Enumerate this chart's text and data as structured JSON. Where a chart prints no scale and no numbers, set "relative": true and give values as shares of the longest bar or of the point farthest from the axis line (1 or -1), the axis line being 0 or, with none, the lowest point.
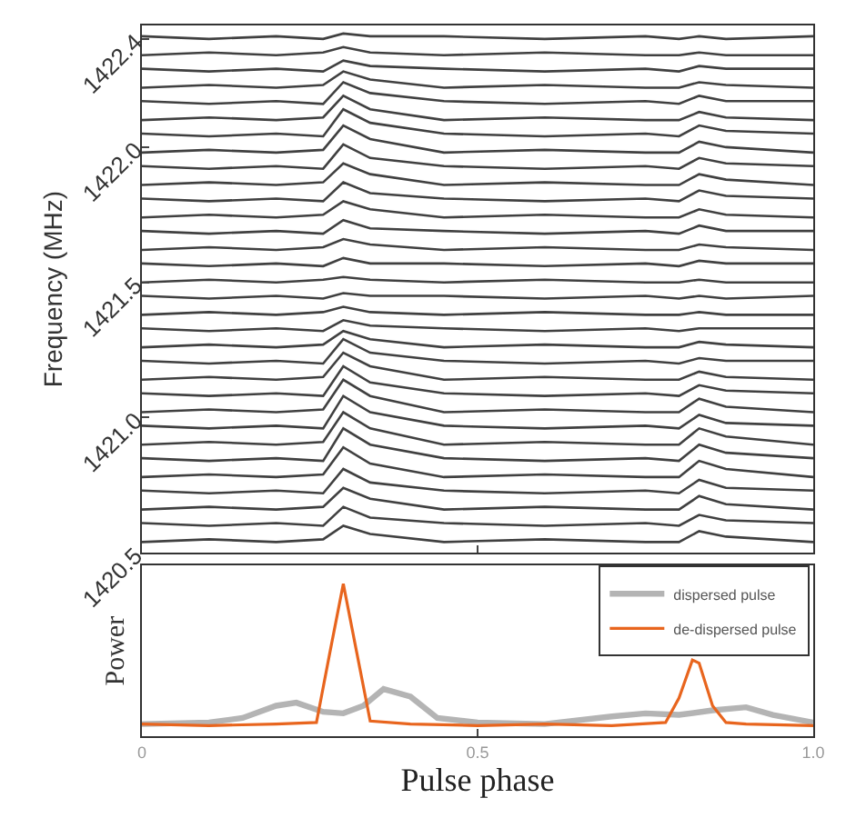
{
  "chart_data": [
    {
      "type": "line",
      "ylabel": "Frequency (MHz)",
      "x": [
        0,
        0.1,
        0.2,
        0.27,
        0.3,
        0.34,
        0.45,
        0.6,
        0.75,
        0.8,
        0.83,
        0.87,
        1.0
      ],
      "series": [
        {
          "color": "#404040",
          "values": [
            1420.54,
            1420.55,
            1420.54,
            1420.55,
            1420.6,
            1420.57,
            1420.54,
            1420.55,
            1420.54,
            1420.54,
            1420.58,
            1420.56,
            1420.54
          ]
        },
        {
          "color": "#404040",
          "values": [
            1420.61,
            1420.6,
            1420.61,
            1420.6,
            1420.67,
            1420.63,
            1420.61,
            1420.6,
            1420.61,
            1420.6,
            1420.64,
            1420.62,
            1420.61
          ]
        },
        {
          "color": "#404040",
          "values": [
            1420.66,
            1420.67,
            1420.66,
            1420.67,
            1420.74,
            1420.7,
            1420.66,
            1420.67,
            1420.66,
            1420.66,
            1420.71,
            1420.68,
            1420.66
          ]
        },
        {
          "color": "#404040",
          "values": [
            1420.73,
            1420.72,
            1420.73,
            1420.72,
            1420.81,
            1420.76,
            1420.73,
            1420.72,
            1420.73,
            1420.72,
            1420.77,
            1420.74,
            1420.73
          ]
        },
        {
          "color": "#404040",
          "values": [
            1420.78,
            1420.79,
            1420.78,
            1420.79,
            1420.89,
            1420.83,
            1420.78,
            1420.79,
            1420.78,
            1420.78,
            1420.84,
            1420.81,
            1420.78
          ]
        },
        {
          "color": "#404040",
          "values": [
            1420.85,
            1420.84,
            1420.85,
            1420.84,
            1420.96,
            1420.9,
            1420.85,
            1420.84,
            1420.85,
            1420.84,
            1420.9,
            1420.87,
            1420.85
          ]
        },
        {
          "color": "#404040",
          "values": [
            1420.9,
            1420.91,
            1420.9,
            1420.91,
            1421.02,
            1420.96,
            1420.9,
            1420.91,
            1420.9,
            1420.9,
            1420.96,
            1420.93,
            1420.9
          ]
        },
        {
          "color": "#404040",
          "values": [
            1420.97,
            1420.96,
            1420.97,
            1420.96,
            1421.08,
            1421.02,
            1420.97,
            1420.96,
            1420.97,
            1420.96,
            1421.01,
            1420.98,
            1420.97
          ]
        },
        {
          "color": "#404040",
          "values": [
            1421.02,
            1421.03,
            1421.02,
            1421.03,
            1421.14,
            1421.08,
            1421.02,
            1421.03,
            1421.02,
            1421.02,
            1421.07,
            1421.04,
            1421.02
          ]
        },
        {
          "color": "#404040",
          "values": [
            1421.09,
            1421.08,
            1421.09,
            1421.08,
            1421.19,
            1421.13,
            1421.09,
            1421.08,
            1421.09,
            1421.08,
            1421.12,
            1421.1,
            1421.09
          ]
        },
        {
          "color": "#404040",
          "values": [
            1421.14,
            1421.15,
            1421.14,
            1421.15,
            1421.24,
            1421.19,
            1421.14,
            1421.15,
            1421.14,
            1421.14,
            1421.17,
            1421.15,
            1421.14
          ]
        },
        {
          "color": "#404040",
          "values": [
            1421.21,
            1421.2,
            1421.21,
            1421.2,
            1421.29,
            1421.24,
            1421.21,
            1421.2,
            1421.21,
            1421.2,
            1421.22,
            1421.21,
            1421.21
          ]
        },
        {
          "color": "#404040",
          "values": [
            1421.26,
            1421.27,
            1421.26,
            1421.27,
            1421.32,
            1421.29,
            1421.26,
            1421.27,
            1421.26,
            1421.26,
            1421.28,
            1421.27,
            1421.26
          ]
        },
        {
          "color": "#404040",
          "values": [
            1421.33,
            1421.32,
            1421.33,
            1421.32,
            1421.36,
            1421.34,
            1421.33,
            1421.32,
            1421.33,
            1421.32,
            1421.33,
            1421.33,
            1421.33
          ]
        },
        {
          "color": "#404040",
          "values": [
            1421.38,
            1421.39,
            1421.38,
            1421.39,
            1421.41,
            1421.39,
            1421.38,
            1421.39,
            1421.38,
            1421.38,
            1421.39,
            1421.38,
            1421.38
          ]
        },
        {
          "color": "#404040",
          "values": [
            1421.45,
            1421.44,
            1421.45,
            1421.44,
            1421.46,
            1421.45,
            1421.45,
            1421.44,
            1421.45,
            1421.44,
            1421.45,
            1421.44,
            1421.45
          ]
        },
        {
          "color": "#404040",
          "values": [
            1421.5,
            1421.51,
            1421.5,
            1421.51,
            1421.52,
            1421.51,
            1421.5,
            1421.51,
            1421.5,
            1421.5,
            1421.51,
            1421.5,
            1421.5
          ]
        },
        {
          "color": "#404040",
          "values": [
            1421.57,
            1421.56,
            1421.57,
            1421.56,
            1421.59,
            1421.57,
            1421.57,
            1421.56,
            1421.57,
            1421.56,
            1421.58,
            1421.57,
            1421.57
          ]
        },
        {
          "color": "#404040",
          "values": [
            1421.62,
            1421.63,
            1421.62,
            1421.63,
            1421.66,
            1421.64,
            1421.62,
            1421.63,
            1421.62,
            1421.62,
            1421.64,
            1421.63,
            1421.62
          ]
        },
        {
          "color": "#404040",
          "values": [
            1421.69,
            1421.68,
            1421.69,
            1421.68,
            1421.73,
            1421.7,
            1421.69,
            1421.68,
            1421.69,
            1421.68,
            1421.71,
            1421.69,
            1421.69
          ]
        },
        {
          "color": "#404040",
          "values": [
            1421.74,
            1421.75,
            1421.74,
            1421.75,
            1421.8,
            1421.77,
            1421.74,
            1421.75,
            1421.74,
            1421.74,
            1421.77,
            1421.75,
            1421.74
          ]
        },
        {
          "color": "#404040",
          "values": [
            1421.81,
            1421.8,
            1421.81,
            1421.8,
            1421.87,
            1421.83,
            1421.81,
            1421.8,
            1421.81,
            1421.8,
            1421.84,
            1421.82,
            1421.81
          ]
        },
        {
          "color": "#404040",
          "values": [
            1421.86,
            1421.87,
            1421.86,
            1421.87,
            1421.94,
            1421.9,
            1421.86,
            1421.87,
            1421.86,
            1421.86,
            1421.9,
            1421.88,
            1421.86
          ]
        },
        {
          "color": "#404040",
          "values": [
            1421.93,
            1421.92,
            1421.93,
            1421.92,
            1422.01,
            1421.96,
            1421.93,
            1421.92,
            1421.93,
            1421.92,
            1421.96,
            1421.94,
            1421.93
          ]
        },
        {
          "color": "#404040",
          "values": [
            1421.98,
            1421.99,
            1421.98,
            1421.99,
            1422.08,
            1422.03,
            1421.98,
            1421.99,
            1421.98,
            1421.98,
            1422.02,
            1422.0,
            1421.98
          ]
        },
        {
          "color": "#404040",
          "values": [
            1422.05,
            1422.04,
            1422.05,
            1422.04,
            1422.14,
            1422.09,
            1422.05,
            1422.04,
            1422.05,
            1422.04,
            1422.08,
            1422.06,
            1422.05
          ]
        },
        {
          "color": "#404040",
          "values": [
            1422.1,
            1422.11,
            1422.1,
            1422.11,
            1422.19,
            1422.14,
            1422.1,
            1422.11,
            1422.1,
            1422.1,
            1422.13,
            1422.11,
            1422.1
          ]
        },
        {
          "color": "#404040",
          "values": [
            1422.17,
            1422.16,
            1422.17,
            1422.16,
            1422.24,
            1422.2,
            1422.17,
            1422.16,
            1422.17,
            1422.16,
            1422.19,
            1422.17,
            1422.17
          ]
        },
        {
          "color": "#404040",
          "values": [
            1422.22,
            1422.23,
            1422.22,
            1422.23,
            1422.28,
            1422.25,
            1422.22,
            1422.23,
            1422.22,
            1422.22,
            1422.24,
            1422.23,
            1422.22
          ]
        },
        {
          "color": "#404040",
          "values": [
            1422.29,
            1422.28,
            1422.29,
            1422.28,
            1422.32,
            1422.3,
            1422.29,
            1422.28,
            1422.29,
            1422.28,
            1422.3,
            1422.29,
            1422.29
          ]
        },
        {
          "color": "#404040",
          "values": [
            1422.34,
            1422.35,
            1422.34,
            1422.35,
            1422.37,
            1422.35,
            1422.34,
            1422.35,
            1422.34,
            1422.34,
            1422.35,
            1422.34,
            1422.34
          ]
        },
        {
          "color": "#404040",
          "values": [
            1422.41,
            1422.4,
            1422.41,
            1422.4,
            1422.42,
            1422.41,
            1422.41,
            1422.4,
            1422.41,
            1422.4,
            1422.41,
            1422.4,
            1422.41
          ]
        }
      ],
      "xlim": [
        0,
        1
      ],
      "xticks": [
        {
          "value": 0.5,
          "label": null
        }
      ],
      "ylim": [
        1420.5,
        1422.45
      ],
      "yticks": [
        1420.5,
        {
          "value": 1421,
          "label": "1421.0"
        },
        1421.5,
        {
          "value": 1422,
          "label": "1422.0"
        },
        1422.4
      ],
      "tick_labels": "y",
      "marker": "none",
      "line_style": "solid"
    },
    {
      "type": "line",
      "xlabel": "Pulse phase",
      "ylabel": "Power",
      "relative": true,
      "series": [
        {
          "name": "dispersed pulse",
          "color": "#b4b4b4",
          "x": [
            0,
            0.1,
            0.15,
            0.2,
            0.23,
            0.27,
            0.3,
            0.33,
            0.36,
            0.4,
            0.44,
            0.5,
            0.6,
            0.7,
            0.75,
            0.8,
            0.85,
            0.9,
            0.94,
            1.0
          ],
          "values": [
            0.08,
            0.09,
            0.12,
            0.2,
            0.22,
            0.16,
            0.15,
            0.2,
            0.31,
            0.26,
            0.12,
            0.09,
            0.08,
            0.13,
            0.15,
            0.14,
            0.17,
            0.19,
            0.14,
            0.09
          ]
        },
        {
          "name": "de-dispersed pulse",
          "color": "#e8651e",
          "x": [
            0,
            0.1,
            0.2,
            0.26,
            0.28,
            0.3,
            0.32,
            0.34,
            0.4,
            0.5,
            0.6,
            0.7,
            0.78,
            0.8,
            0.82,
            0.83,
            0.85,
            0.87,
            0.9,
            1.0
          ],
          "values": [
            0.08,
            0.07,
            0.08,
            0.09,
            0.55,
            1,
            0.55,
            0.1,
            0.08,
            0.07,
            0.08,
            0.07,
            0.09,
            0.25,
            0.5,
            0.48,
            0.2,
            0.09,
            0.08,
            0.07
          ]
        }
      ],
      "xlim": [
        0,
        1
      ],
      "xticks": [
        0,
        0.5,
        {
          "value": 1,
          "label": "1.0"
        }
      ],
      "legend": "top right",
      "marker": "none",
      "line_style": "solid"
    }
  ]
}
